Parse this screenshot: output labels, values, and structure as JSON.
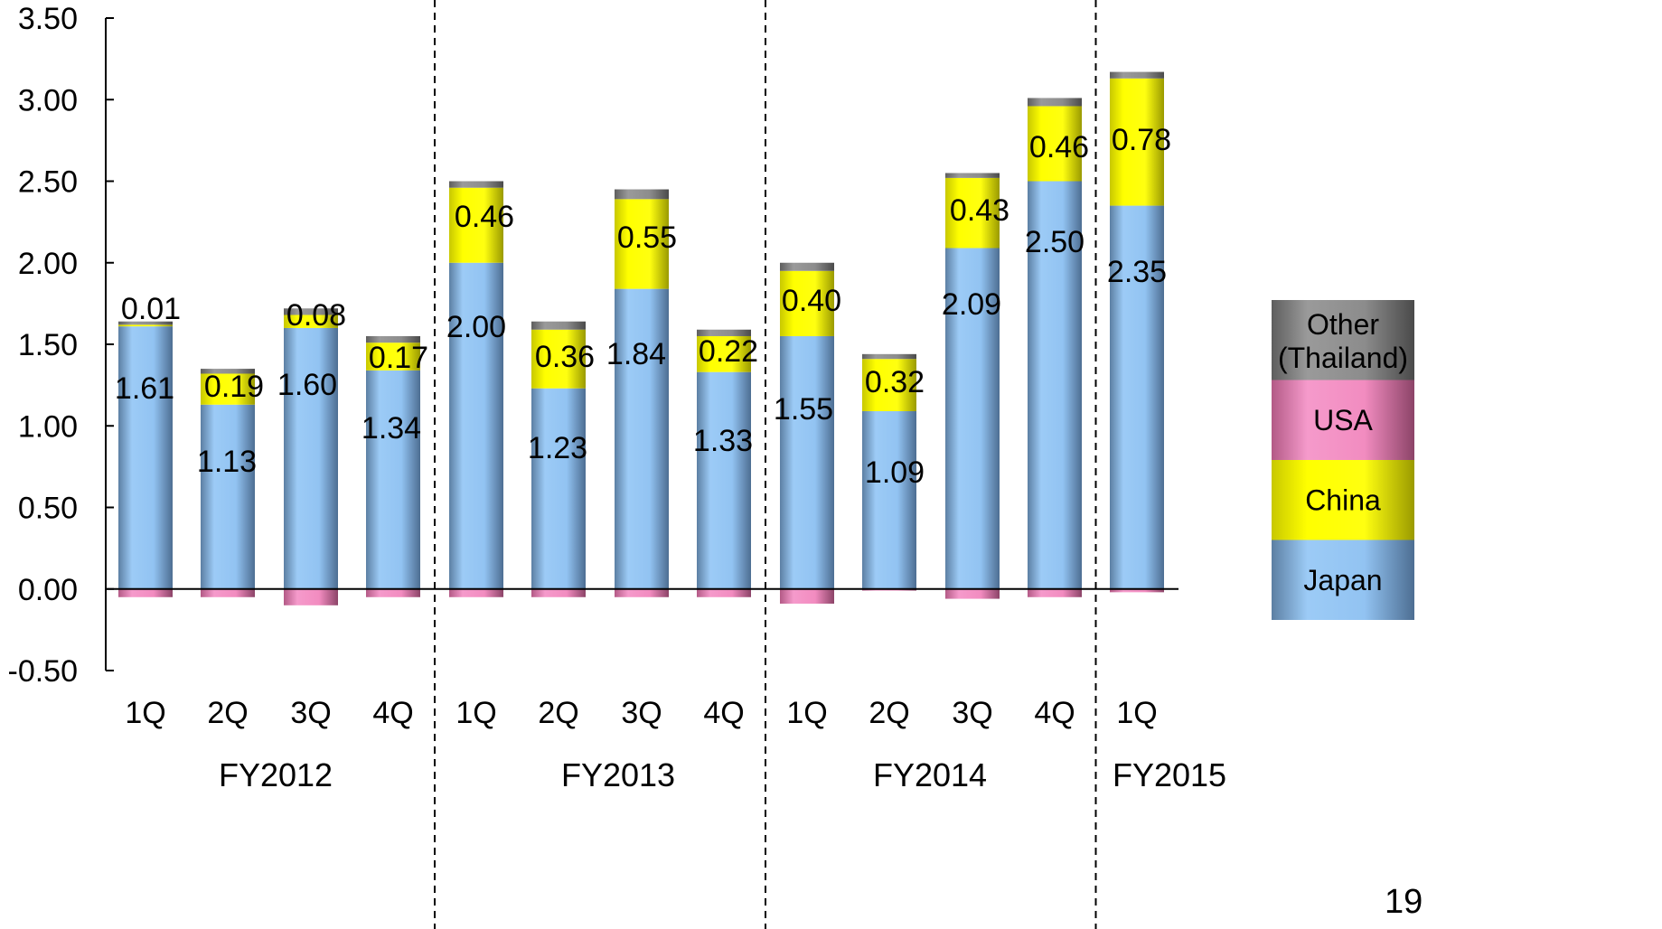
{
  "chart_data": {
    "type": "bar",
    "stacked": true,
    "y_ticks": [
      "3.50",
      "3.00",
      "2.50",
      "2.00",
      "1.50",
      "1.00",
      "0.50",
      "0.00",
      "-0.50"
    ],
    "ylim": [
      -0.5,
      3.5
    ],
    "grid": false,
    "legend_position": "right",
    "categories": [
      "1Q",
      "2Q",
      "3Q",
      "4Q",
      "1Q",
      "2Q",
      "3Q",
      "4Q",
      "1Q",
      "2Q",
      "3Q",
      "4Q",
      "1Q"
    ],
    "groups": [
      {
        "label": "FY2012",
        "count": 4
      },
      {
        "label": "FY2013",
        "count": 4
      },
      {
        "label": "FY2014",
        "count": 4
      },
      {
        "label": "FY2015",
        "count": 1
      }
    ],
    "series": [
      {
        "name": "Japan",
        "color": "#8fc3f5",
        "values": [
          1.61,
          1.13,
          1.6,
          1.34,
          2.0,
          1.23,
          1.84,
          1.33,
          1.55,
          1.09,
          2.09,
          2.5,
          2.35
        ],
        "labels": [
          "1.61",
          "1.13",
          "1.60",
          "1.34",
          "2.00",
          "1.23",
          "1.84",
          "1.33",
          "1.55",
          "1.09",
          "2.09",
          "2.50",
          "2.35"
        ]
      },
      {
        "name": "China",
        "color": "#ffff00",
        "values": [
          0.01,
          0.19,
          0.08,
          0.17,
          0.46,
          0.36,
          0.55,
          0.22,
          0.4,
          0.32,
          0.43,
          0.46,
          0.78
        ],
        "labels": [
          "0.01",
          "0.19",
          "0.08",
          "0.17",
          "0.46",
          "0.36",
          "0.55",
          "0.22",
          "0.40",
          "0.32",
          "0.43",
          "0.46",
          "0.78"
        ]
      },
      {
        "name": "USA",
        "color": "#f48cc0",
        "values": [
          -0.05,
          -0.05,
          -0.1,
          -0.05,
          -0.05,
          -0.05,
          -0.05,
          -0.05,
          -0.09,
          -0.01,
          -0.06,
          -0.05,
          -0.02
        ]
      },
      {
        "name": "Other\n(Thailand)",
        "color": "#888888",
        "values": [
          0.02,
          0.03,
          0.04,
          0.04,
          0.04,
          0.05,
          0.06,
          0.04,
          0.05,
          0.03,
          0.03,
          0.05,
          0.04
        ]
      }
    ],
    "legend": [
      {
        "name": "Other",
        "name2": "(Thailand)",
        "color": "#888888"
      },
      {
        "name": "USA",
        "color": "#f48cc0"
      },
      {
        "name": "China",
        "color": "#ffff00"
      },
      {
        "name": "Japan",
        "color": "#8fc3f5"
      }
    ],
    "page_number": "19"
  }
}
